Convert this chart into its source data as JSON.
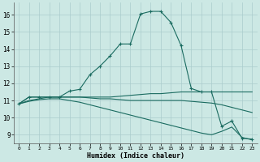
{
  "xlabel": "Humidex (Indice chaleur)",
  "bg_color": "#cce8e4",
  "grid_color": "#aacccc",
  "line_color": "#1a6b60",
  "xlim": [
    -0.5,
    23.5
  ],
  "ylim": [
    8.5,
    16.7
  ],
  "xticks": [
    0,
    1,
    2,
    3,
    4,
    5,
    6,
    7,
    8,
    9,
    10,
    11,
    12,
    13,
    14,
    15,
    16,
    17,
    18,
    19,
    20,
    21,
    22,
    23
  ],
  "yticks": [
    9,
    10,
    11,
    12,
    13,
    14,
    15,
    16
  ],
  "curve1_x": [
    0,
    1,
    2,
    3,
    4,
    5,
    6,
    7,
    8,
    9,
    10,
    11,
    12,
    13,
    14,
    15,
    16,
    17,
    18,
    19,
    20,
    21,
    22,
    23
  ],
  "curve1_y": [
    10.8,
    11.2,
    11.2,
    11.2,
    11.2,
    11.55,
    11.65,
    12.5,
    13.0,
    13.6,
    14.3,
    14.3,
    16.05,
    16.2,
    16.2,
    15.55,
    14.2,
    11.7,
    11.5,
    11.5,
    9.5,
    9.8,
    8.8,
    8.75
  ],
  "curve2_x": [
    0,
    1,
    2,
    3,
    4,
    5,
    6,
    7,
    8,
    9,
    10,
    11,
    12,
    13,
    14,
    15,
    16,
    17,
    18,
    19,
    20,
    21,
    22,
    23
  ],
  "curve2_y": [
    10.8,
    11.2,
    11.2,
    11.2,
    11.2,
    11.2,
    11.2,
    11.2,
    11.2,
    11.2,
    11.25,
    11.3,
    11.35,
    11.4,
    11.4,
    11.45,
    11.5,
    11.5,
    11.5,
    11.5,
    11.5,
    11.5,
    11.5,
    11.5
  ],
  "curve3_x": [
    0,
    1,
    2,
    3,
    4,
    5,
    6,
    7,
    8,
    9,
    10,
    11,
    12,
    13,
    14,
    15,
    16,
    17,
    18,
    19,
    20,
    21,
    22,
    23
  ],
  "curve3_y": [
    10.8,
    11.0,
    11.1,
    11.2,
    11.2,
    11.2,
    11.2,
    11.15,
    11.1,
    11.1,
    11.05,
    11.0,
    11.0,
    11.0,
    11.0,
    11.0,
    11.0,
    10.95,
    10.9,
    10.85,
    10.75,
    10.6,
    10.45,
    10.3
  ],
  "curve4_x": [
    0,
    1,
    2,
    3,
    4,
    5,
    6,
    7,
    8,
    9,
    10,
    11,
    12,
    13,
    14,
    15,
    16,
    17,
    18,
    19,
    20,
    21,
    22,
    23
  ],
  "curve4_y": [
    10.8,
    10.95,
    11.05,
    11.1,
    11.1,
    11.0,
    10.9,
    10.75,
    10.6,
    10.45,
    10.3,
    10.15,
    10.0,
    9.85,
    9.7,
    9.55,
    9.4,
    9.25,
    9.1,
    9.0,
    9.2,
    9.45,
    8.85,
    8.7
  ]
}
